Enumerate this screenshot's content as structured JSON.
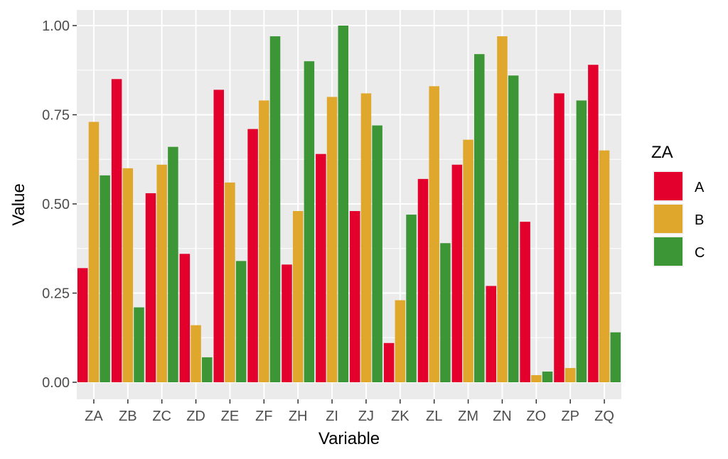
{
  "chart_data": {
    "type": "bar",
    "title": "",
    "xlabel": "Variable",
    "ylabel": "Value",
    "ylim": [
      -0.1,
      1.05
    ],
    "yticks": [
      0.0,
      0.25,
      0.5,
      0.75,
      1.0
    ],
    "ytick_labels": [
      "0.00",
      "0.25",
      "0.50",
      "0.75",
      "1.00"
    ],
    "grid": true,
    "legend": {
      "title": "ZA",
      "placement": "right"
    },
    "categories": [
      "ZA",
      "ZB",
      "ZC",
      "ZD",
      "ZE",
      "ZF",
      "ZH",
      "ZI",
      "ZJ",
      "ZK",
      "ZL",
      "ZM",
      "ZN",
      "ZO",
      "ZP",
      "ZQ"
    ],
    "series": [
      {
        "name": "A",
        "color": "#e3002c",
        "values": [
          0.32,
          0.85,
          0.53,
          0.36,
          0.82,
          0.71,
          0.33,
          0.64,
          0.48,
          0.11,
          0.57,
          0.61,
          0.27,
          0.45,
          0.81,
          0.89
        ]
      },
      {
        "name": "B",
        "color": "#dfa82c",
        "values": [
          0.73,
          0.6,
          0.61,
          0.16,
          0.56,
          0.79,
          0.48,
          0.8,
          0.81,
          0.23,
          0.83,
          0.68,
          0.97,
          0.02,
          0.04,
          0.65
        ]
      },
      {
        "name": "C",
        "color": "#3d9636",
        "values": [
          0.58,
          0.21,
          0.66,
          0.07,
          0.34,
          0.97,
          0.9,
          1.0,
          0.72,
          0.47,
          0.39,
          0.92,
          0.86,
          0.03,
          0.79,
          0.14
        ]
      }
    ]
  }
}
